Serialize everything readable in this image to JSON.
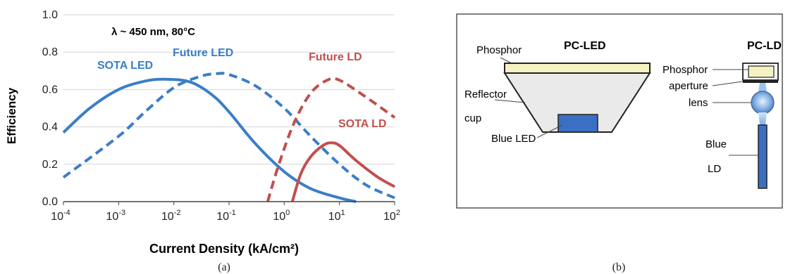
{
  "panel_a": {
    "caption": "(a)",
    "annotation": "λ ~ 450 nm, 80°C",
    "chart_data": {
      "type": "line",
      "xlabel": "Current Density (kA/cm²)",
      "ylabel": "Efficiency",
      "xscale": "log",
      "xlim": [
        0.0001,
        100
      ],
      "ylim": [
        0,
        1.0
      ],
      "y_ticks": [
        "0.0",
        "0.2",
        "0.4",
        "0.6",
        "0.8",
        "1.0"
      ],
      "x_ticks": [
        {
          "base": "10",
          "exp": "-4"
        },
        {
          "base": "10",
          "exp": "-3"
        },
        {
          "base": "10",
          "exp": "-2"
        },
        {
          "base": "10",
          "exp": "-1"
        },
        {
          "base": "10",
          "exp": "0"
        },
        {
          "base": "10",
          "exp": "1"
        },
        {
          "base": "10",
          "exp": "2"
        }
      ],
      "grid": "horizontal",
      "series": [
        {
          "name": "SOTA LED",
          "color": "#3a7ec8",
          "dash": "solid",
          "x": [
            0.0001,
            0.0003,
            0.001,
            0.003,
            0.007,
            0.02,
            0.05,
            0.1,
            0.3,
            1,
            3,
            10,
            20
          ],
          "y": [
            0.37,
            0.5,
            0.6,
            0.645,
            0.655,
            0.64,
            0.57,
            0.48,
            0.31,
            0.16,
            0.07,
            0.02,
            0.0
          ]
        },
        {
          "name": "Future LED",
          "color": "#3a7ec8",
          "dash": "dashed",
          "x": [
            0.0001,
            0.001,
            0.003,
            0.01,
            0.03,
            0.06,
            0.1,
            0.3,
            1,
            3,
            10,
            30,
            100
          ],
          "y": [
            0.13,
            0.35,
            0.48,
            0.61,
            0.67,
            0.685,
            0.68,
            0.62,
            0.5,
            0.35,
            0.2,
            0.09,
            0.02
          ]
        },
        {
          "name": "Future LD",
          "color": "#c0504d",
          "dash": "dashed",
          "x": [
            0.5,
            0.8,
            1.5,
            3,
            6,
            10,
            30,
            100
          ],
          "y": [
            0.0,
            0.2,
            0.42,
            0.58,
            0.65,
            0.65,
            0.56,
            0.45
          ]
        },
        {
          "name": "SOTA LD",
          "color": "#c0504d",
          "dash": "solid",
          "x": [
            1.4,
            2,
            3,
            5,
            7,
            10,
            20,
            50,
            100
          ],
          "y": [
            0.0,
            0.15,
            0.24,
            0.3,
            0.315,
            0.3,
            0.22,
            0.13,
            0.08
          ]
        }
      ]
    }
  },
  "panel_b": {
    "caption": "(b)",
    "pc_led_title": "PC-LED",
    "pc_ld_title": "PC-LD",
    "phosphor_label": "Phosphor",
    "reflector_label_1": "Reflector",
    "reflector_label_2": "cup",
    "blue_led_label": "Blue LED",
    "ld_phosphor_label": "Phosphor",
    "aperture_label": "aperture",
    "lens_label": "lens",
    "blue_ld_label_1": "Blue",
    "blue_ld_label_2": "LD",
    "colors": {
      "phosphor": "#f4f2c2",
      "reflector": "#eaeaea",
      "blue": "#3b6fc4",
      "lens": "#8fb8e8",
      "frame": "#555555"
    }
  }
}
